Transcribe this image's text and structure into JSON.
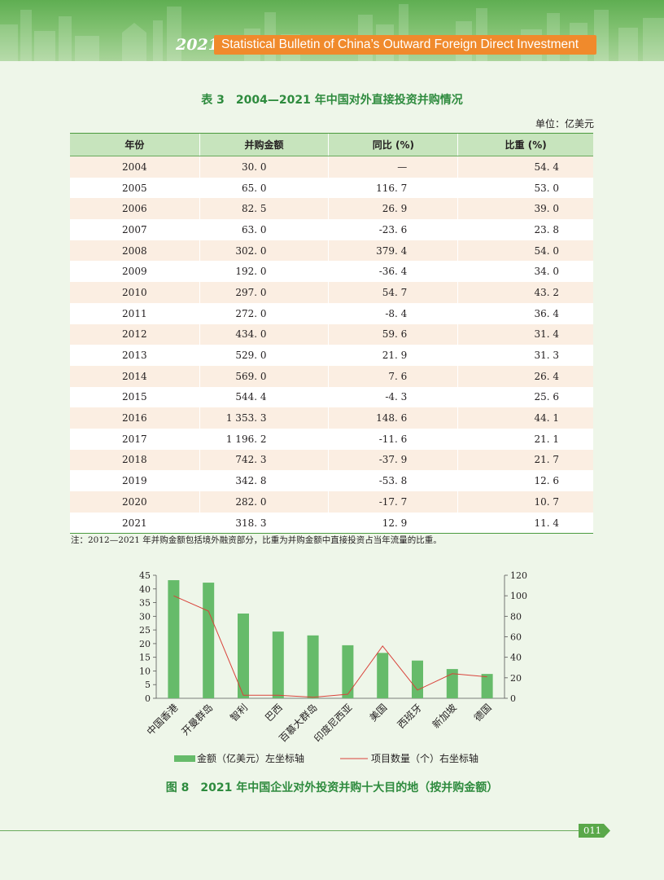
{
  "header": {
    "year": "2021",
    "title": "Statistical Bulletin of China’s Outward Foreign Direct Investment"
  },
  "table": {
    "title": "表 3　2004—2021 年中国对外直接投资并购情况",
    "unit": "单位：亿美元",
    "columns": [
      "年份",
      "并购金额",
      "同比 (%)",
      "比重 (%)"
    ],
    "rows": [
      [
        "2004",
        "30. 0",
        "—",
        "54. 4"
      ],
      [
        "2005",
        "65. 0",
        "116. 7",
        "53. 0"
      ],
      [
        "2006",
        "82. 5",
        "26. 9",
        "39. 0"
      ],
      [
        "2007",
        "63. 0",
        "-23. 6",
        "23. 8"
      ],
      [
        "2008",
        "302. 0",
        "379. 4",
        "54. 0"
      ],
      [
        "2009",
        "192. 0",
        "-36. 4",
        "34. 0"
      ],
      [
        "2010",
        "297. 0",
        "54. 7",
        "43. 2"
      ],
      [
        "2011",
        "272. 0",
        "-8. 4",
        "36. 4"
      ],
      [
        "2012",
        "434. 0",
        "59. 6",
        "31. 4"
      ],
      [
        "2013",
        "529. 0",
        "21. 9",
        "31. 3"
      ],
      [
        "2014",
        "569. 0",
        "7. 6",
        "26. 4"
      ],
      [
        "2015",
        "544. 4",
        "-4. 3",
        "25. 6"
      ],
      [
        "2016",
        "1 353. 3",
        "148. 6",
        "44. 1"
      ],
      [
        "2017",
        "1 196. 2",
        "-11. 6",
        "21. 1"
      ],
      [
        "2018",
        "742. 3",
        "-37. 9",
        "21. 7"
      ],
      [
        "2019",
        "342. 8",
        "-53. 8",
        "12. 6"
      ],
      [
        "2020",
        "282. 0",
        "-17. 7",
        "10. 7"
      ],
      [
        "2021",
        "318. 3",
        "12. 9",
        "11. 4"
      ]
    ],
    "note": "注：2012—2021 年并购金额包括境外融资部分，比重为并购金额中直接投资占当年流量的比重。"
  },
  "chart_data": {
    "type": "bar",
    "categories": [
      "中国香港",
      "开曼群岛",
      "智利",
      "巴西",
      "百慕大群岛",
      "印度尼西亚",
      "美国",
      "西班牙",
      "新加坡",
      "德国"
    ],
    "series": [
      {
        "name": "金额（亿美元）左坐标轴",
        "type": "bar",
        "axis": "left",
        "values": [
          43.2,
          42.3,
          31.0,
          24.4,
          23.0,
          19.4,
          16.6,
          13.8,
          10.7,
          8.9
        ]
      },
      {
        "name": "项目数量（个）右坐标轴",
        "type": "line",
        "axis": "right",
        "values": [
          100,
          85,
          3,
          3,
          1,
          4,
          51,
          8,
          24,
          21
        ]
      }
    ],
    "ylim_left": [
      0,
      45
    ],
    "yticks_left": [
      0,
      5,
      10,
      15,
      20,
      25,
      30,
      35,
      40,
      45
    ],
    "ylim_right": [
      0,
      120
    ],
    "yticks_right": [
      0,
      20,
      40,
      60,
      80,
      100,
      120
    ],
    "legend_position": "bottom",
    "colors": {
      "bar": "#66bb6a",
      "line": "#d9433b"
    },
    "title": "图 8　2021 年中国企业对外投资并购十大目的地（按并购金额）"
  },
  "footer": {
    "page": "011"
  }
}
